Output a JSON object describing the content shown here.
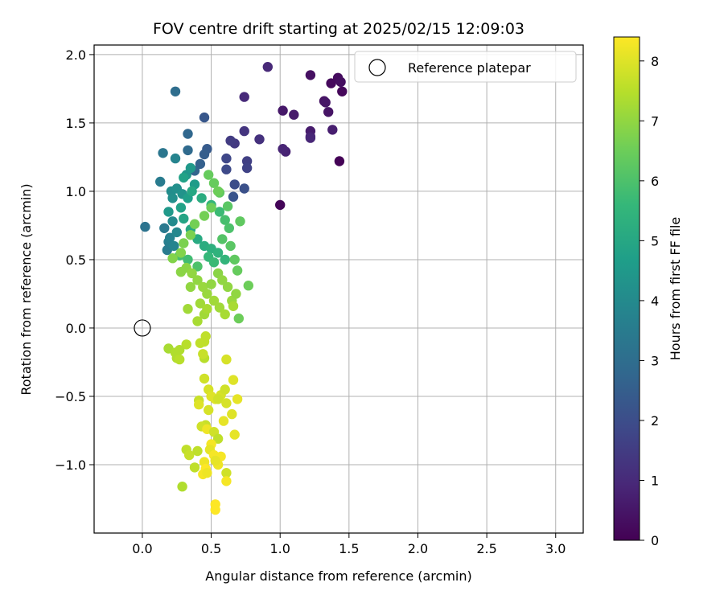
{
  "chart_data": {
    "type": "scatter",
    "title": "FOV centre drift starting at 2025/02/15 12:09:03",
    "xlabel": "Angular distance from reference (arcmin)",
    "ylabel": "Rotation from reference (arcmin)",
    "xlim": [
      -0.35,
      3.2
    ],
    "ylim": [
      -1.5,
      2.07
    ],
    "xticks": [
      0.0,
      0.5,
      1.0,
      1.5,
      2.0,
      2.5,
      3.0
    ],
    "xtick_labels": [
      "0.0",
      "0.5",
      "1.0",
      "1.5",
      "2.0",
      "2.5",
      "3.0"
    ],
    "yticks": [
      -1.0,
      -0.5,
      0.0,
      0.5,
      1.0,
      1.5,
      2.0
    ],
    "ytick_labels": [
      "−1.0",
      "−0.5",
      "0.0",
      "0.5",
      "1.0",
      "1.5",
      "2.0"
    ],
    "grid": true,
    "legend": {
      "placement": "top-right",
      "entries": [
        "Reference platepar"
      ]
    },
    "reference_point": {
      "x": 0.0,
      "y": 0.0
    },
    "colorbar": {
      "label": "Hours from first FF file",
      "colormap": "viridis",
      "range": [
        0,
        8.4
      ],
      "ticks": [
        0,
        1,
        2,
        3,
        4,
        5,
        6,
        7,
        8
      ],
      "tick_labels": [
        "0",
        "1",
        "2",
        "3",
        "4",
        "5",
        "6",
        "7",
        "8"
      ]
    },
    "colormap_stops": [
      "#440154",
      "#482878",
      "#3e4989",
      "#31688e",
      "#26828e",
      "#1f9e89",
      "#35b779",
      "#6ece58",
      "#b5de2b",
      "#fde725"
    ],
    "series": [
      {
        "points": [
          [
            1.43,
            1.22,
            0.05
          ],
          [
            1.0,
            0.9,
            0.1
          ],
          [
            1.45,
            1.73,
            0.15
          ],
          [
            1.37,
            1.79,
            0.2
          ],
          [
            1.42,
            1.83,
            0.25
          ],
          [
            1.44,
            1.8,
            0.3
          ],
          [
            1.22,
            1.85,
            0.35
          ],
          [
            1.32,
            1.66,
            0.4
          ],
          [
            1.35,
            1.58,
            0.45
          ],
          [
            1.33,
            1.65,
            0.5
          ],
          [
            1.02,
            1.59,
            0.55
          ],
          [
            1.1,
            1.56,
            0.6
          ],
          [
            1.22,
            1.44,
            0.65
          ],
          [
            1.38,
            1.45,
            0.7
          ],
          [
            1.22,
            1.4,
            0.75
          ],
          [
            1.04,
            1.29,
            0.8
          ],
          [
            1.02,
            1.31,
            0.85
          ],
          [
            1.22,
            1.39,
            0.9
          ],
          [
            0.91,
            1.91,
            0.95
          ],
          [
            0.74,
            1.69,
            1.0
          ],
          [
            0.85,
            1.38,
            1.2
          ],
          [
            0.74,
            1.44,
            1.3
          ],
          [
            0.67,
            1.35,
            1.4
          ],
          [
            0.64,
            1.37,
            1.5
          ],
          [
            0.76,
            1.22,
            1.6
          ],
          [
            0.76,
            1.17,
            1.7
          ],
          [
            0.61,
            1.24,
            1.8
          ],
          [
            0.61,
            1.16,
            1.9
          ],
          [
            0.67,
            1.05,
            2.0
          ],
          [
            0.74,
            1.02,
            2.1
          ],
          [
            0.66,
            0.96,
            2.2
          ],
          [
            0.45,
            1.54,
            2.3
          ],
          [
            0.47,
            1.31,
            2.4
          ],
          [
            0.45,
            1.27,
            2.5
          ],
          [
            0.42,
            1.2,
            2.6
          ],
          [
            0.38,
            1.15,
            2.7
          ],
          [
            0.33,
            1.42,
            2.8
          ],
          [
            0.33,
            1.3,
            2.9
          ],
          [
            0.24,
            1.73,
            3.0
          ],
          [
            0.02,
            0.74,
            3.2
          ],
          [
            0.16,
            0.73,
            3.4
          ],
          [
            0.18,
            0.57,
            3.5
          ],
          [
            0.19,
            0.63,
            3.6
          ],
          [
            0.2,
            0.66,
            3.7
          ],
          [
            0.23,
            0.6,
            3.8
          ],
          [
            0.25,
            0.7,
            3.9
          ],
          [
            0.22,
            0.78,
            4.0
          ],
          [
            0.21,
            1.0,
            4.1
          ],
          [
            0.25,
            1.02,
            4.2
          ],
          [
            0.29,
            0.98,
            4.3
          ],
          [
            0.32,
            1.12,
            4.4
          ],
          [
            0.35,
            1.17,
            4.5
          ],
          [
            0.38,
            1.05,
            4.6
          ],
          [
            0.33,
            0.95,
            4.7
          ],
          [
            0.28,
            0.88,
            4.8
          ],
          [
            0.3,
            0.8,
            4.9
          ],
          [
            0.35,
            0.72,
            5.0
          ],
          [
            0.4,
            0.65,
            5.1
          ],
          [
            0.45,
            0.6,
            5.2
          ],
          [
            0.5,
            0.58,
            5.3
          ],
          [
            0.55,
            0.55,
            5.4
          ],
          [
            0.6,
            0.5,
            5.5
          ],
          [
            0.48,
            0.52,
            5.6
          ],
          [
            0.52,
            0.48,
            5.7
          ],
          [
            0.33,
            0.5,
            5.8
          ],
          [
            0.27,
            0.53,
            5.9
          ],
          [
            0.4,
            0.45,
            6.0
          ],
          [
            0.15,
            1.28,
            3.3
          ],
          [
            0.13,
            1.07,
            3.5
          ],
          [
            0.24,
            1.24,
            3.8
          ],
          [
            0.22,
            0.95,
            4.2
          ],
          [
            0.19,
            0.85,
            4.5
          ],
          [
            0.3,
            1.1,
            4.8
          ],
          [
            0.36,
            1.0,
            5.0
          ],
          [
            0.43,
            0.95,
            5.2
          ],
          [
            0.5,
            0.9,
            5.5
          ],
          [
            0.56,
            0.85,
            5.7
          ],
          [
            0.6,
            0.79,
            5.9
          ],
          [
            0.63,
            0.73,
            6.0
          ],
          [
            0.58,
            0.65,
            6.1
          ],
          [
            0.64,
            0.6,
            6.2
          ],
          [
            0.67,
            0.5,
            6.3
          ],
          [
            0.69,
            0.42,
            6.4
          ],
          [
            0.77,
            0.31,
            6.5
          ],
          [
            0.7,
            0.07,
            6.5
          ],
          [
            0.71,
            0.78,
            6.3
          ],
          [
            0.62,
            0.89,
            6.2
          ],
          [
            0.56,
            0.99,
            6.3
          ],
          [
            0.52,
            1.06,
            6.4
          ],
          [
            0.48,
            1.12,
            6.4
          ],
          [
            0.55,
            1.0,
            6.5
          ],
          [
            0.5,
            0.88,
            6.5
          ],
          [
            0.45,
            0.82,
            6.6
          ],
          [
            0.38,
            0.76,
            6.6
          ],
          [
            0.35,
            0.68,
            6.7
          ],
          [
            0.3,
            0.62,
            6.7
          ],
          [
            0.28,
            0.55,
            6.8
          ],
          [
            0.22,
            0.51,
            6.8
          ],
          [
            0.28,
            0.41,
            6.9
          ],
          [
            0.32,
            0.44,
            6.9
          ],
          [
            0.36,
            0.4,
            7.0
          ],
          [
            0.4,
            0.35,
            7.0
          ],
          [
            0.44,
            0.3,
            7.1
          ],
          [
            0.47,
            0.25,
            7.1
          ],
          [
            0.52,
            0.2,
            7.2
          ],
          [
            0.56,
            0.15,
            7.2
          ],
          [
            0.6,
            0.1,
            7.3
          ],
          [
            0.65,
            0.2,
            7.1
          ],
          [
            0.68,
            0.25,
            7.0
          ],
          [
            0.45,
            0.1,
            7.2
          ],
          [
            0.4,
            0.05,
            7.3
          ],
          [
            0.35,
            0.3,
            7.0
          ],
          [
            0.33,
            0.14,
            7.2
          ],
          [
            0.42,
            0.18,
            7.2
          ],
          [
            0.47,
            0.14,
            7.3
          ],
          [
            0.5,
            0.32,
            7.0
          ],
          [
            0.55,
            0.4,
            6.9
          ],
          [
            0.58,
            0.35,
            7.0
          ],
          [
            0.62,
            0.3,
            7.0
          ],
          [
            0.66,
            0.16,
            7.3
          ],
          [
            0.19,
            -0.15,
            7.3
          ],
          [
            0.24,
            -0.18,
            7.4
          ],
          [
            0.25,
            -0.22,
            7.4
          ],
          [
            0.27,
            -0.23,
            7.5
          ],
          [
            0.32,
            -0.12,
            7.5
          ],
          [
            0.27,
            -0.16,
            7.4
          ],
          [
            0.45,
            -0.22,
            7.5
          ],
          [
            0.46,
            -0.06,
            7.6
          ],
          [
            0.45,
            -0.1,
            7.6
          ],
          [
            0.42,
            -0.11,
            7.6
          ],
          [
            0.44,
            -0.19,
            7.7
          ],
          [
            0.61,
            -0.23,
            7.9
          ],
          [
            0.45,
            -0.37,
            7.8
          ],
          [
            0.48,
            -0.45,
            7.9
          ],
          [
            0.5,
            -0.5,
            8.0
          ],
          [
            0.53,
            -0.52,
            8.0
          ],
          [
            0.57,
            -0.49,
            7.9
          ],
          [
            0.6,
            -0.45,
            7.8
          ],
          [
            0.66,
            -0.38,
            8.0
          ],
          [
            0.69,
            -0.52,
            8.1
          ],
          [
            0.41,
            -0.53,
            7.7
          ],
          [
            0.41,
            -0.56,
            8.0
          ],
          [
            0.48,
            -0.6,
            7.9
          ],
          [
            0.55,
            -0.52,
            7.8
          ],
          [
            0.61,
            -0.55,
            7.9
          ],
          [
            0.65,
            -0.63,
            8.0
          ],
          [
            0.59,
            -0.68,
            8.1
          ],
          [
            0.67,
            -0.78,
            8.1
          ],
          [
            0.46,
            -0.71,
            7.7
          ],
          [
            0.43,
            -0.72,
            7.8
          ],
          [
            0.47,
            -0.74,
            8.2
          ],
          [
            0.52,
            -0.76,
            7.8
          ],
          [
            0.55,
            -0.81,
            7.6
          ],
          [
            0.5,
            -0.85,
            8.3
          ],
          [
            0.49,
            -0.89,
            8.1
          ],
          [
            0.32,
            -0.89,
            7.6
          ],
          [
            0.34,
            -0.93,
            7.7
          ],
          [
            0.4,
            -0.9,
            7.6
          ],
          [
            0.38,
            -1.02,
            7.6
          ],
          [
            0.45,
            -0.98,
            8.2
          ],
          [
            0.52,
            -0.93,
            8.3
          ],
          [
            0.55,
            -1.0,
            8.2
          ],
          [
            0.57,
            -0.94,
            8.3
          ],
          [
            0.53,
            -0.97,
            8.1
          ],
          [
            0.46,
            -1.03,
            8.4
          ],
          [
            0.44,
            -1.07,
            8.3
          ],
          [
            0.47,
            -1.06,
            8.2
          ],
          [
            0.61,
            -1.06,
            7.8
          ],
          [
            0.61,
            -1.12,
            8.3
          ],
          [
            0.29,
            -1.16,
            7.4
          ],
          [
            0.53,
            -1.29,
            8.4
          ],
          [
            0.53,
            -1.33,
            8.4
          ]
        ]
      }
    ]
  }
}
